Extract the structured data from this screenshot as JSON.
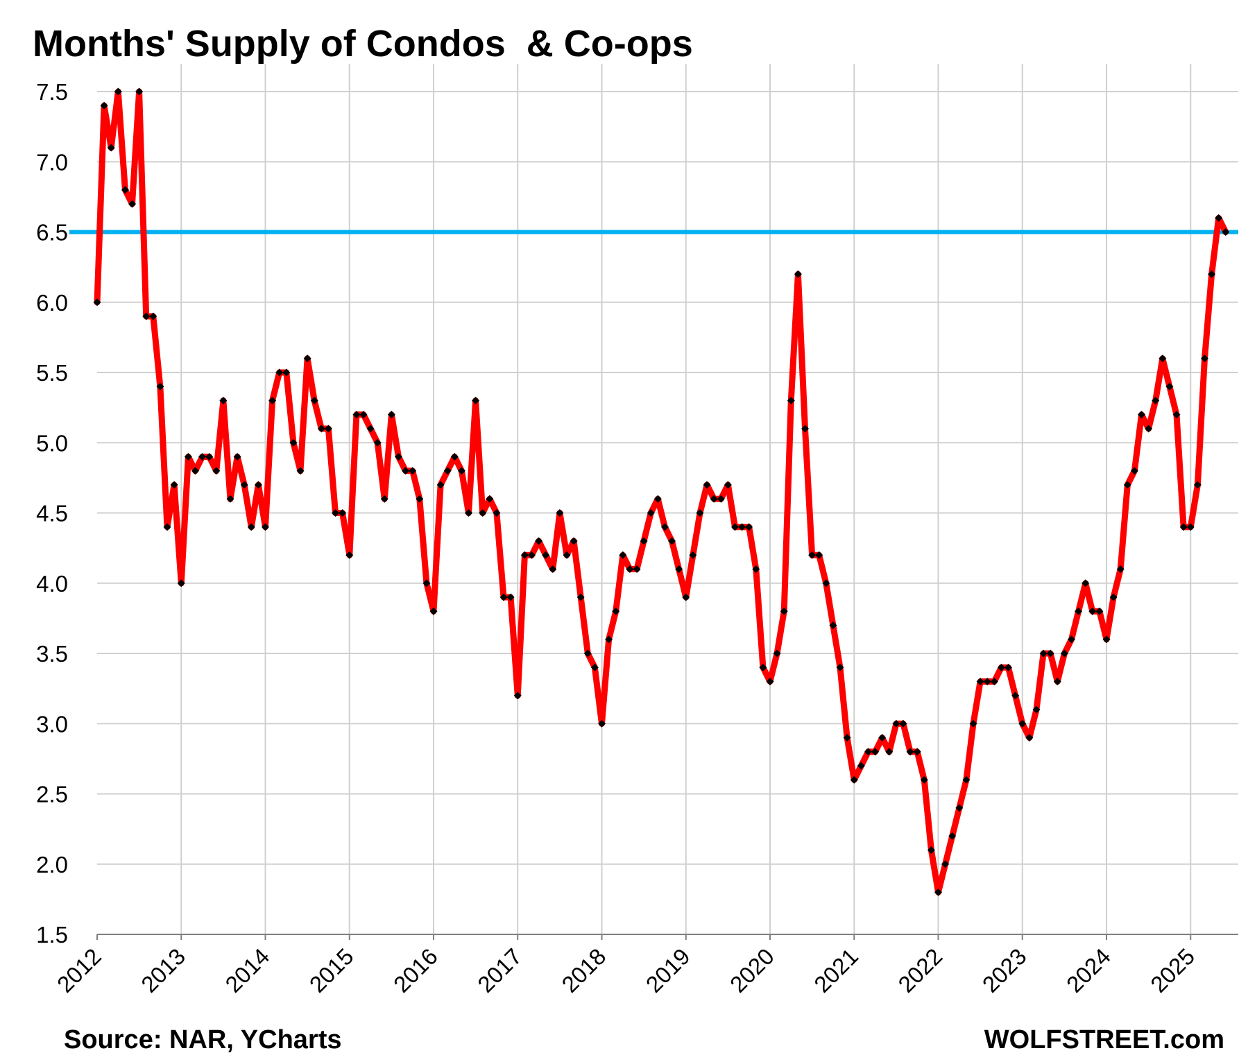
{
  "title": "Months' Supply of Condos  & Co-ops",
  "source": "Source: NAR, YCharts",
  "brand": "WOLFSTREET.com",
  "colors": {
    "series_line": "#ff0000",
    "markers": "#000000",
    "reference_line": "#00b0f0",
    "grid": "#d0d0d0",
    "axis": "#808080"
  },
  "chart_data": {
    "type": "line",
    "title": "Months' Supply of Condos  & Co-ops",
    "xlabel": "",
    "ylabel": "",
    "ylim": [
      1.5,
      7.5
    ],
    "yticks": [
      "1.5",
      "2.0",
      "2.5",
      "3.0",
      "3.5",
      "4.0",
      "4.5",
      "5.0",
      "5.5",
      "6.0",
      "6.5",
      "7.0",
      "7.5"
    ],
    "xticks": [
      "2012",
      "2013",
      "2014",
      "2015",
      "2016",
      "2017",
      "2018",
      "2019",
      "2020",
      "2021",
      "2022",
      "2023",
      "2024",
      "2025"
    ],
    "x_start": "2012-01",
    "x_frequency": "monthly",
    "grid": true,
    "legend": "none",
    "reference_line": {
      "y": 6.5
    },
    "series": [
      {
        "values": [
          6.0,
          7.4,
          7.1,
          7.5,
          6.8,
          6.7,
          7.5,
          5.9,
          5.9,
          5.4,
          4.4,
          4.7,
          4.0,
          4.9,
          4.8,
          4.9,
          4.9,
          4.8,
          5.3,
          4.6,
          4.9,
          4.7,
          4.4,
          4.7,
          4.4,
          5.3,
          5.5,
          5.5,
          5.0,
          4.8,
          5.6,
          5.3,
          5.1,
          5.1,
          4.5,
          4.5,
          4.2,
          5.2,
          5.2,
          5.1,
          5.0,
          4.6,
          5.2,
          4.9,
          4.8,
          4.8,
          4.6,
          4.0,
          3.8,
          4.7,
          4.8,
          4.9,
          4.8,
          4.5,
          5.3,
          4.5,
          4.6,
          4.5,
          3.9,
          3.9,
          3.2,
          4.2,
          4.2,
          4.3,
          4.2,
          4.1,
          4.5,
          4.2,
          4.3,
          3.9,
          3.5,
          3.4,
          3.0,
          3.6,
          3.8,
          4.2,
          4.1,
          4.1,
          4.3,
          4.5,
          4.6,
          4.4,
          4.3,
          4.1,
          3.9,
          4.2,
          4.5,
          4.7,
          4.6,
          4.6,
          4.7,
          4.4,
          4.4,
          4.4,
          4.1,
          3.4,
          3.3,
          3.5,
          3.8,
          5.3,
          6.2,
          5.1,
          4.2,
          4.2,
          4.0,
          3.7,
          3.4,
          2.9,
          2.6,
          2.7,
          2.8,
          2.8,
          2.9,
          2.8,
          3.0,
          3.0,
          2.8,
          2.8,
          2.6,
          2.1,
          1.8,
          2.0,
          2.2,
          2.4,
          2.6,
          3.0,
          3.3,
          3.3,
          3.3,
          3.4,
          3.4,
          3.2,
          3.0,
          2.9,
          3.1,
          3.5,
          3.5,
          3.3,
          3.5,
          3.6,
          3.8,
          4.0,
          3.8,
          3.8,
          3.6,
          3.9,
          4.1,
          4.7,
          4.8,
          5.2,
          5.1,
          5.3,
          5.6,
          5.4,
          5.2,
          4.4,
          4.4,
          4.7,
          5.6,
          6.2,
          6.6,
          6.5
        ]
      }
    ]
  }
}
